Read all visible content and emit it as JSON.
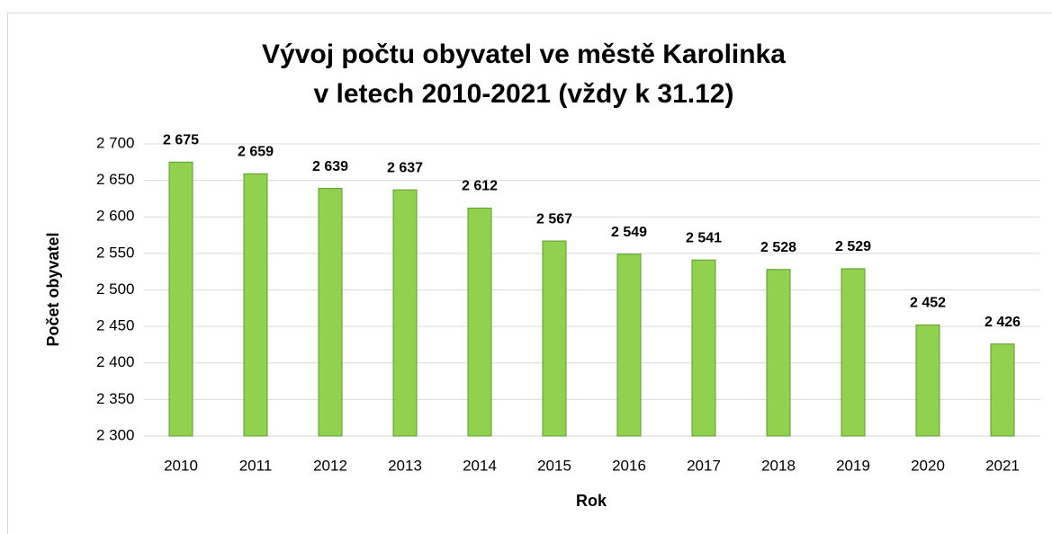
{
  "chart_data": {
    "type": "bar",
    "title": [
      "Vývoj počtu obyvatel ve městě Karolinka",
      "v letech 2010-2021 (vždy k 31.12)"
    ],
    "x_label": "Rok",
    "y_label": "Počet obyvatel",
    "categories": [
      "2010",
      "2011",
      "2012",
      "2013",
      "2014",
      "2015",
      "2016",
      "2017",
      "2018",
      "2019",
      "2020",
      "2021"
    ],
    "values": [
      2675,
      2659,
      2639,
      2637,
      2612,
      2567,
      2549,
      2541,
      2528,
      2529,
      2452,
      2426
    ],
    "value_labels": [
      "2 675",
      "2 659",
      "2 639",
      "2 637",
      "2 612",
      "2 567",
      "2 549",
      "2 541",
      "2 528",
      "2 529",
      "2 452",
      "2 426"
    ],
    "color": "#92d050",
    "ylim": [
      2300,
      2700
    ],
    "yticks": [
      {
        "value": 2300,
        "label": "2 300"
      },
      {
        "value": 2350,
        "label": "2 350"
      },
      {
        "value": 2400,
        "label": "2 400"
      },
      {
        "value": 2450,
        "label": "2 450"
      },
      {
        "value": 2500,
        "label": "2 500"
      },
      {
        "value": 2550,
        "label": "2 550"
      },
      {
        "value": 2600,
        "label": "2 600"
      },
      {
        "value": 2650,
        "label": "2 650"
      },
      {
        "value": 2700,
        "label": "2 700"
      }
    ],
    "grid": true
  }
}
